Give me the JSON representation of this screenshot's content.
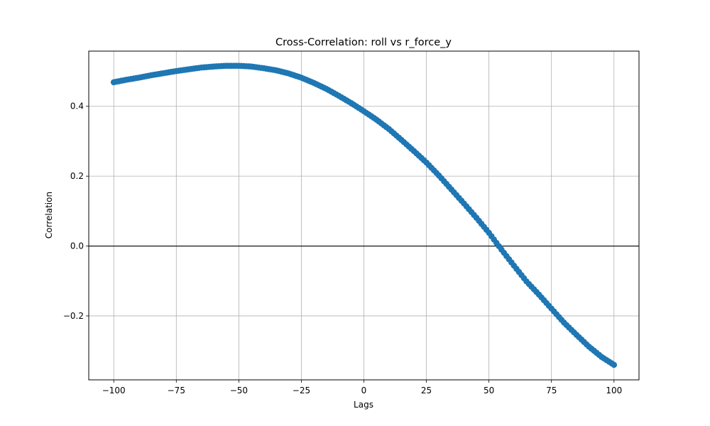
{
  "chart_data": {
    "type": "scatter",
    "title": "Cross-Correlation: roll vs r_force_y",
    "xlabel": "Lags",
    "ylabel": "Correlation",
    "xlim": [
      -110,
      110
    ],
    "ylim": [
      -0.383,
      0.558
    ],
    "xticks": [
      -100,
      -75,
      -50,
      -25,
      0,
      25,
      50,
      75,
      100
    ],
    "xtick_labels": [
      "−100",
      "−75",
      "−50",
      "−25",
      "0",
      "25",
      "50",
      "75",
      "100"
    ],
    "yticks": [
      -0.2,
      0.0,
      0.2,
      0.4
    ],
    "ytick_labels": [
      "−0.2",
      "0.0",
      "0.2",
      "0.4"
    ],
    "grid": true,
    "reference_line_y": 0,
    "series": [
      {
        "color": "#1f77b4",
        "marker": "circle",
        "x": [
          -100,
          -95,
          -90,
          -85,
          -80,
          -75,
          -70,
          -65,
          -60,
          -55,
          -50,
          -45,
          -40,
          -35,
          -30,
          -25,
          -20,
          -15,
          -10,
          -5,
          0,
          5,
          10,
          15,
          20,
          25,
          30,
          35,
          40,
          45,
          50,
          55,
          60,
          65,
          70,
          75,
          80,
          85,
          90,
          95,
          100
        ],
        "y": [
          0.469,
          0.476,
          0.482,
          0.489,
          0.495,
          0.501,
          0.506,
          0.511,
          0.514,
          0.516,
          0.516,
          0.514,
          0.509,
          0.503,
          0.494,
          0.482,
          0.467,
          0.45,
          0.43,
          0.409,
          0.386,
          0.362,
          0.335,
          0.304,
          0.272,
          0.239,
          0.202,
          0.162,
          0.122,
          0.081,
          0.038,
          -0.01,
          -0.056,
          -0.101,
          -0.139,
          -0.179,
          -0.219,
          -0.254,
          -0.288,
          -0.317,
          -0.34
        ]
      }
    ]
  }
}
